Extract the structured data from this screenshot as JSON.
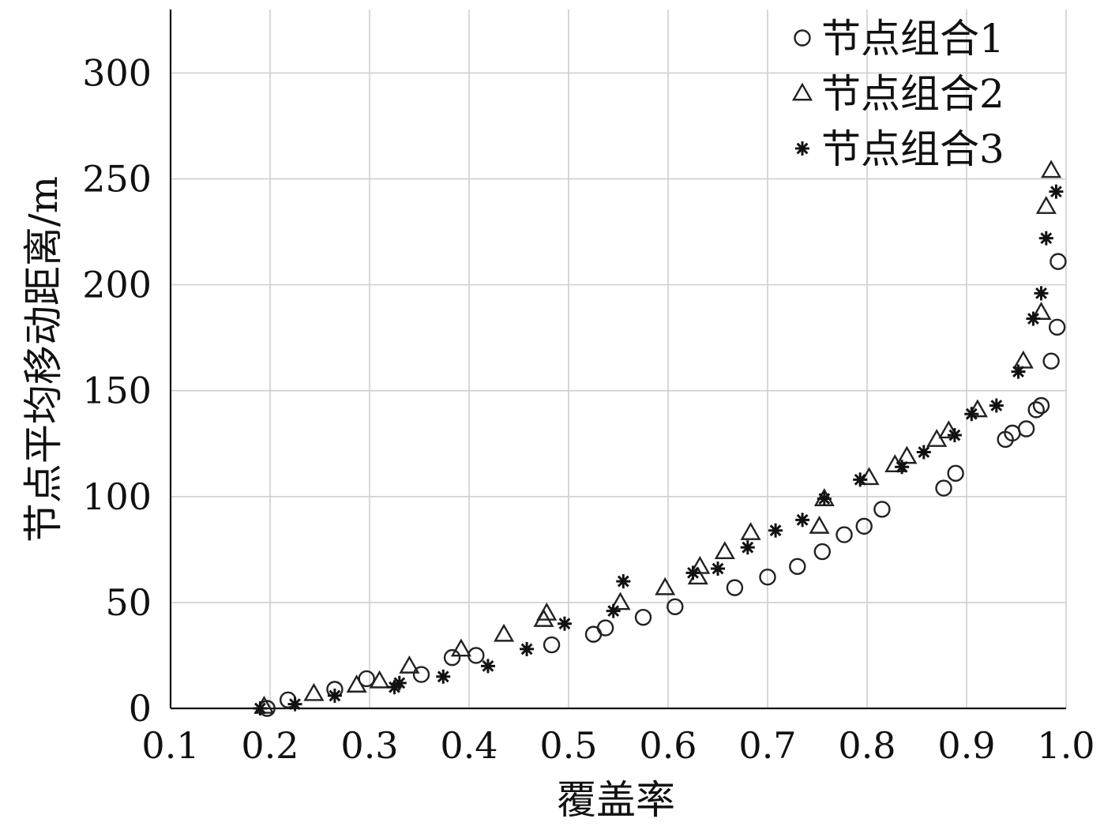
{
  "chart_data": {
    "type": "scatter",
    "title": "",
    "xlabel": "覆盖率",
    "ylabel": "节点平均移动距离/m",
    "xlim": [
      0.1,
      1.0
    ],
    "ylim": [
      0,
      330
    ],
    "x_ticks": [
      0.1,
      0.2,
      0.3,
      0.4,
      0.5,
      0.6,
      0.7,
      0.8,
      0.9,
      1.0
    ],
    "x_tick_labels": [
      "0.1",
      "0.2",
      "0.3",
      "0.4",
      "0.5",
      "0.6",
      "0.7",
      "0.8",
      "0.9",
      "1.0"
    ],
    "y_ticks": [
      0,
      50,
      100,
      150,
      200,
      250,
      300
    ],
    "y_tick_labels": [
      "0",
      "50",
      "100",
      "150",
      "200",
      "250",
      "300"
    ],
    "grid": true,
    "legend_position": "top-right",
    "series": [
      {
        "name": "节点组合1",
        "marker": "circle",
        "points": [
          [
            0.197,
            0
          ],
          [
            0.218,
            4
          ],
          [
            0.265,
            9
          ],
          [
            0.297,
            14
          ],
          [
            0.352,
            16
          ],
          [
            0.383,
            24
          ],
          [
            0.407,
            25
          ],
          [
            0.483,
            30
          ],
          [
            0.525,
            35
          ],
          [
            0.537,
            38
          ],
          [
            0.575,
            43
          ],
          [
            0.607,
            48
          ],
          [
            0.667,
            57
          ],
          [
            0.7,
            62
          ],
          [
            0.73,
            67
          ],
          [
            0.755,
            74
          ],
          [
            0.777,
            82
          ],
          [
            0.797,
            86
          ],
          [
            0.815,
            94
          ],
          [
            0.877,
            104
          ],
          [
            0.889,
            111
          ],
          [
            0.939,
            127
          ],
          [
            0.946,
            130
          ],
          [
            0.96,
            132
          ],
          [
            0.97,
            141
          ],
          [
            0.975,
            143
          ],
          [
            0.985,
            164
          ],
          [
            0.991,
            180
          ],
          [
            0.992,
            211
          ]
        ]
      },
      {
        "name": "节点组合2",
        "marker": "triangle",
        "points": [
          [
            0.194,
            1
          ],
          [
            0.244,
            7
          ],
          [
            0.287,
            11
          ],
          [
            0.31,
            13
          ],
          [
            0.34,
            20
          ],
          [
            0.392,
            28
          ],
          [
            0.435,
            35
          ],
          [
            0.475,
            42
          ],
          [
            0.478,
            45
          ],
          [
            0.552,
            50
          ],
          [
            0.597,
            57
          ],
          [
            0.63,
            62
          ],
          [
            0.632,
            67
          ],
          [
            0.657,
            74
          ],
          [
            0.683,
            83
          ],
          [
            0.752,
            86
          ],
          [
            0.757,
            99
          ],
          [
            0.802,
            109
          ],
          [
            0.828,
            115
          ],
          [
            0.84,
            119
          ],
          [
            0.87,
            127
          ],
          [
            0.882,
            131
          ],
          [
            0.911,
            141
          ],
          [
            0.957,
            164
          ],
          [
            0.975,
            187
          ],
          [
            0.98,
            237
          ],
          [
            0.985,
            254
          ]
        ]
      },
      {
        "name": "节点组合3",
        "marker": "star",
        "points": [
          [
            0.19,
            0
          ],
          [
            0.225,
            2
          ],
          [
            0.265,
            6
          ],
          [
            0.325,
            10
          ],
          [
            0.33,
            12
          ],
          [
            0.374,
            15
          ],
          [
            0.419,
            20
          ],
          [
            0.458,
            28
          ],
          [
            0.496,
            40
          ],
          [
            0.545,
            46
          ],
          [
            0.555,
            60
          ],
          [
            0.625,
            64
          ],
          [
            0.65,
            66
          ],
          [
            0.68,
            76
          ],
          [
            0.708,
            84
          ],
          [
            0.735,
            89
          ],
          [
            0.757,
            99
          ],
          [
            0.793,
            108
          ],
          [
            0.835,
            114
          ],
          [
            0.857,
            121
          ],
          [
            0.888,
            129
          ],
          [
            0.905,
            139
          ],
          [
            0.93,
            143
          ],
          [
            0.952,
            159
          ],
          [
            0.967,
            184
          ],
          [
            0.975,
            196
          ],
          [
            0.98,
            222
          ],
          [
            0.99,
            244
          ]
        ]
      }
    ]
  }
}
